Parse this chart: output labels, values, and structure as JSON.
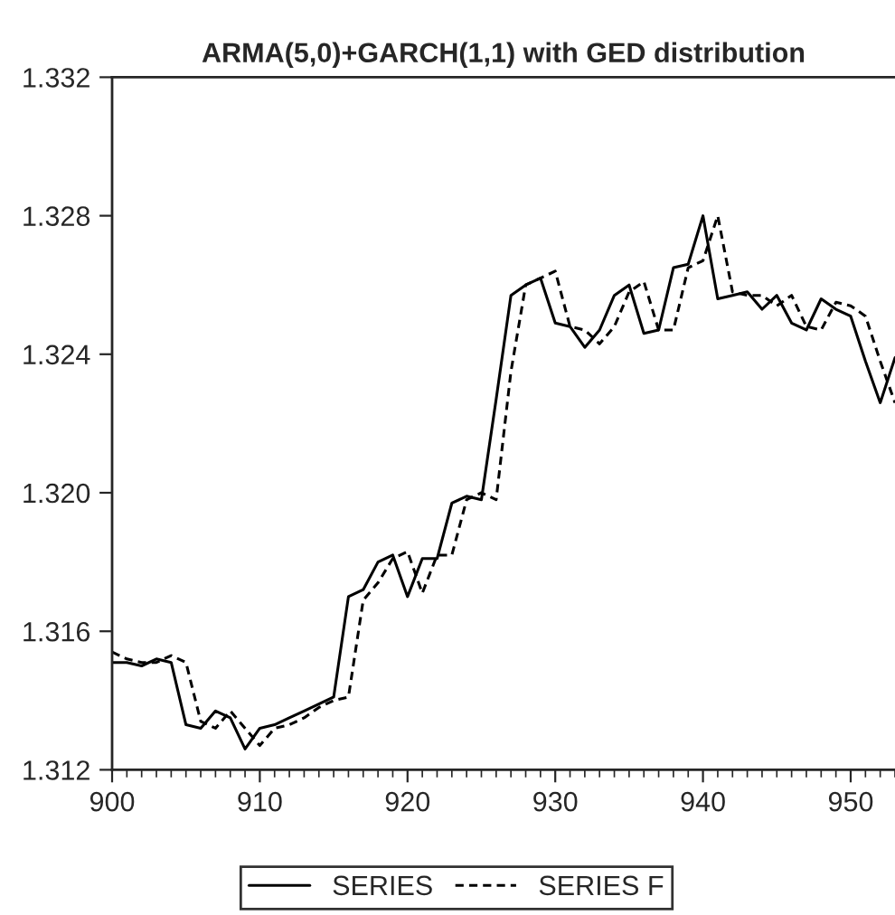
{
  "chart_data": {
    "type": "line",
    "title": "ARMA(5,0)+GARCH(1,1) with GED distribution",
    "x": [
      900,
      901,
      902,
      903,
      904,
      905,
      906,
      907,
      908,
      909,
      910,
      911,
      912,
      913,
      914,
      915,
      916,
      917,
      918,
      919,
      920,
      921,
      922,
      923,
      924,
      925,
      926,
      927,
      928,
      929,
      930,
      931,
      932,
      933,
      934,
      935,
      936,
      937,
      938,
      939,
      940,
      941,
      942,
      943,
      944,
      945,
      946,
      947,
      948,
      949,
      950,
      951,
      952,
      953
    ],
    "series": [
      {
        "name": "SERIES",
        "color": "#000000",
        "line_style": "solid",
        "values": [
          1.3151,
          1.3151,
          1.315,
          1.3152,
          1.3151,
          1.3133,
          1.3132,
          1.3137,
          1.3135,
          1.3126,
          1.3132,
          1.3133,
          1.3135,
          1.3137,
          1.3139,
          1.3141,
          1.317,
          1.3172,
          1.318,
          1.3182,
          1.317,
          1.3181,
          1.3181,
          1.3197,
          1.3199,
          1.3198,
          1.3227,
          1.3257,
          1.326,
          1.3262,
          1.3249,
          1.3248,
          1.3242,
          1.3247,
          1.3257,
          1.326,
          1.3246,
          1.3247,
          1.3265,
          1.3266,
          1.328,
          1.3256,
          1.3257,
          1.3258,
          1.3253,
          1.3257,
          1.3249,
          1.3247,
          1.3256,
          1.3253,
          1.3251,
          1.3238,
          1.3226,
          1.3239
        ]
      },
      {
        "name": "SERIES F",
        "color": "#000000",
        "line_style": "dashed",
        "values": [
          1.3154,
          1.3152,
          1.3151,
          1.3151,
          1.3153,
          1.3151,
          1.3134,
          1.3132,
          1.3137,
          1.3132,
          1.3127,
          1.3132,
          1.3133,
          1.3135,
          1.3138,
          1.314,
          1.3141,
          1.3169,
          1.3174,
          1.3181,
          1.3183,
          1.3171,
          1.3182,
          1.3182,
          1.3198,
          1.32,
          1.3198,
          1.3235,
          1.326,
          1.3262,
          1.3264,
          1.3248,
          1.3247,
          1.3243,
          1.3248,
          1.3258,
          1.3261,
          1.3247,
          1.3247,
          1.3265,
          1.3267,
          1.328,
          1.3258,
          1.3257,
          1.3257,
          1.3254,
          1.3257,
          1.3248,
          1.3247,
          1.3255,
          1.3254,
          1.3251,
          1.3238,
          1.3226
        ]
      }
    ],
    "xlim": [
      900,
      953
    ],
    "xticks": [
      900,
      910,
      920,
      930,
      940,
      950
    ],
    "ylim": [
      1.312,
      1.332
    ],
    "yticks": [
      {
        "value": 1.312,
        "label": "1.312"
      },
      {
        "value": 1.316,
        "label": "1.316"
      },
      {
        "value": 1.32,
        "label": "1.320"
      },
      {
        "value": 1.324,
        "label": "1.324"
      },
      {
        "value": 1.328,
        "label": "1.328"
      },
      {
        "value": 1.332,
        "label": "1.332"
      }
    ],
    "legend": "bottom",
    "grid": false
  }
}
